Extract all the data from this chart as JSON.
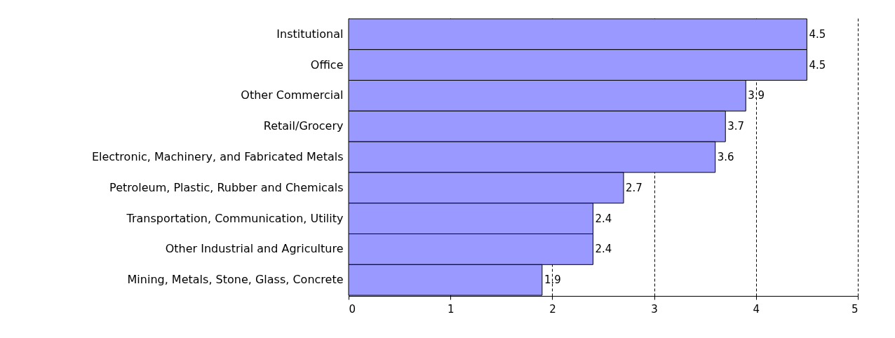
{
  "chart_data": {
    "type": "bar",
    "orientation": "horizontal",
    "categories": [
      "Institutional",
      "Office",
      "Other Commercial",
      "Retail/Grocery",
      "Electronic, Machinery, and Fabricated Metals",
      "Petroleum, Plastic, Rubber and Chemicals",
      "Transportation, Communication, Utility",
      "Other Industrial and Agriculture",
      "Mining, Metals, Stone, Glass, Concrete"
    ],
    "values": [
      4.5,
      4.5,
      3.9,
      3.7,
      3.6,
      2.7,
      2.4,
      2.4,
      1.9
    ],
    "color": "#9999ff",
    "data_labels": true,
    "xlim": [
      0,
      5
    ],
    "xticks": [
      0,
      1,
      2,
      3,
      4,
      5
    ],
    "grid": "x",
    "line_style": "dashed"
  }
}
